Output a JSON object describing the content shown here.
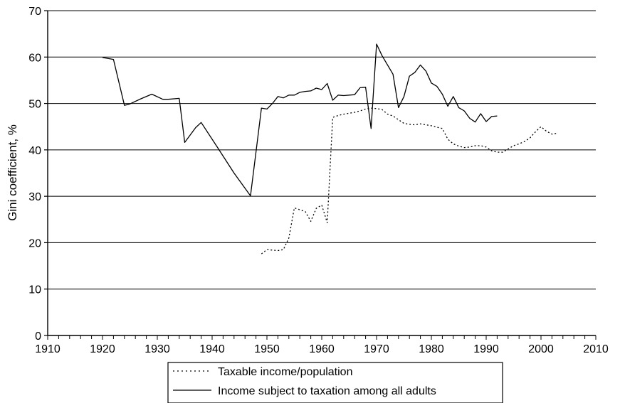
{
  "chart_data": {
    "type": "line",
    "ylabel": "Gini coefficient, %",
    "xlabel": "",
    "xlim": [
      1910,
      2010
    ],
    "ylim": [
      0,
      70
    ],
    "x_ticks": [
      "1910",
      "1920",
      "1930",
      "1940",
      "1950",
      "1960",
      "1970",
      "1980",
      "1990",
      "2000",
      "2010"
    ],
    "y_ticks": [
      "0",
      "10",
      "20",
      "30",
      "40",
      "50",
      "60",
      "70"
    ],
    "grid": "horizontal",
    "legend_position": "bottom",
    "series": [
      {
        "name": "Taxable income/population",
        "style": "dotted",
        "x": [
          1949,
          1950,
          1951,
          1952,
          1953,
          1954,
          1955,
          1956,
          1957,
          1958,
          1959,
          1960,
          1961,
          1962,
          1963,
          1964,
          1965,
          1966,
          1967,
          1968,
          1969,
          1970,
          1971,
          1972,
          1973,
          1974,
          1975,
          1976,
          1977,
          1978,
          1979,
          1980,
          1981,
          1982,
          1983,
          1984,
          1985,
          1986,
          1987,
          1988,
          1989,
          1990,
          1991,
          1992,
          1993,
          1994,
          1995,
          1996,
          1997,
          1998,
          1999,
          2000,
          2001,
          2002,
          2003
        ],
        "y": [
          17.6,
          18.5,
          18.4,
          18.3,
          18.5,
          21.0,
          27.5,
          27.1,
          26.7,
          24.6,
          27.4,
          28.1,
          24.3,
          47.0,
          47.4,
          47.7,
          47.9,
          48.1,
          48.4,
          48.8,
          49.0,
          48.9,
          48.7,
          47.7,
          47.3,
          46.5,
          45.7,
          45.5,
          45.4,
          45.6,
          45.4,
          45.2,
          44.9,
          44.6,
          42.3,
          41.3,
          40.8,
          40.5,
          40.6,
          40.9,
          40.9,
          40.6,
          39.8,
          39.5,
          39.5,
          40.2,
          40.9,
          41.3,
          41.8,
          42.6,
          43.9,
          45.0,
          44.0,
          43.4,
          43.6
        ]
      },
      {
        "name": "Income subject to taxation among all adults",
        "style": "solid",
        "x": [
          1920,
          1922,
          1924,
          1925,
          1927,
          1929,
          1931,
          1932,
          1934,
          1935,
          1937,
          1938,
          1941,
          1944,
          1947,
          1948,
          1949,
          1950,
          1951,
          1952,
          1953,
          1954,
          1955,
          1956,
          1957,
          1958,
          1959,
          1960,
          1961,
          1962,
          1963,
          1964,
          1965,
          1966,
          1967,
          1968,
          1969,
          1970,
          1971,
          1973,
          1974,
          1975,
          1976,
          1977,
          1978,
          1979,
          1980,
          1981,
          1982,
          1983,
          1984,
          1985,
          1986,
          1987,
          1988,
          1989,
          1990,
          1991,
          1992
        ],
        "y": [
          59.9,
          59.5,
          49.6,
          49.9,
          51.0,
          52.0,
          50.9,
          50.9,
          51.1,
          41.6,
          44.8,
          45.9,
          40.5,
          35.0,
          30.1,
          39.5,
          49.0,
          48.8,
          50.0,
          51.5,
          51.2,
          51.8,
          51.8,
          52.4,
          52.6,
          52.7,
          53.3,
          53.0,
          54.3,
          50.7,
          51.8,
          51.7,
          51.8,
          51.9,
          53.4,
          53.5,
          44.6,
          62.8,
          60.3,
          56.3,
          49.1,
          51.5,
          55.9,
          56.7,
          58.3,
          57.0,
          54.4,
          53.7,
          52.0,
          49.4,
          51.5,
          49.1,
          48.4,
          46.8,
          46.0,
          47.8,
          46.1,
          47.2,
          47.3
        ]
      }
    ]
  }
}
